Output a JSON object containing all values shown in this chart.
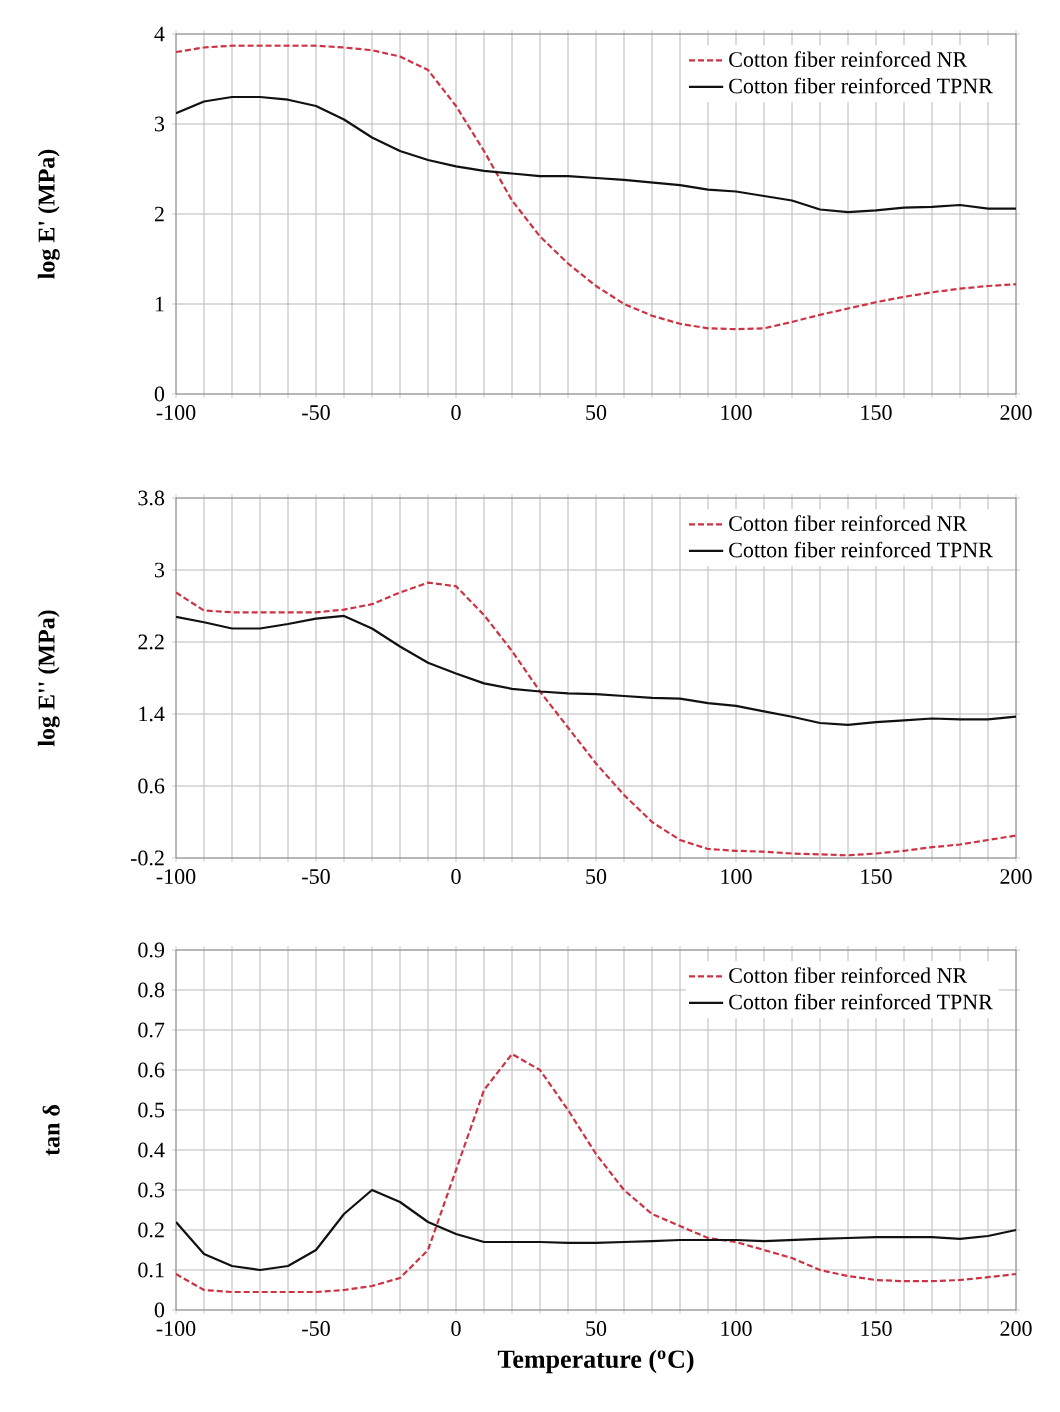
{
  "chart_data": [
    {
      "type": "line",
      "ylabel": "log E' (MPa)",
      "x": [
        -100,
        -90,
        -80,
        -70,
        -60,
        -50,
        -40,
        -30,
        -20,
        -10,
        0,
        10,
        20,
        30,
        40,
        50,
        60,
        70,
        80,
        90,
        100,
        110,
        120,
        130,
        140,
        150,
        160,
        170,
        180,
        190,
        200
      ],
      "series": [
        {
          "name": "Cotton fiber reinforced NR",
          "color": "#cc3344",
          "line_style": "dashed",
          "values": [
            3.8,
            3.85,
            3.87,
            3.87,
            3.87,
            3.87,
            3.85,
            3.82,
            3.75,
            3.6,
            3.2,
            2.7,
            2.15,
            1.75,
            1.45,
            1.2,
            1.0,
            0.87,
            0.78,
            0.73,
            0.72,
            0.73,
            0.8,
            0.88,
            0.95,
            1.02,
            1.08,
            1.13,
            1.17,
            1.2,
            1.22
          ]
        },
        {
          "name": "Cotton fiber reinforced TPNR",
          "color": "#111111",
          "line_style": "solid",
          "values": [
            3.12,
            3.25,
            3.3,
            3.3,
            3.27,
            3.2,
            3.05,
            2.85,
            2.7,
            2.6,
            2.53,
            2.48,
            2.45,
            2.42,
            2.42,
            2.4,
            2.38,
            2.35,
            2.32,
            2.27,
            2.25,
            2.2,
            2.15,
            2.05,
            2.02,
            2.04,
            2.07,
            2.08,
            2.1,
            2.06,
            2.06
          ]
        }
      ],
      "xlim": [
        -100,
        200
      ],
      "ylim": [
        0,
        4
      ],
      "xticks": [
        -100,
        {
          "value": -90,
          "label": null
        },
        {
          "value": -80,
          "label": null
        },
        {
          "value": -70,
          "label": null
        },
        {
          "value": -60,
          "label": null
        },
        -50,
        {
          "value": -40,
          "label": null
        },
        {
          "value": -30,
          "label": null
        },
        {
          "value": -20,
          "label": null
        },
        {
          "value": -10,
          "label": null
        },
        0,
        {
          "value": 10,
          "label": null
        },
        {
          "value": 20,
          "label": null
        },
        {
          "value": 30,
          "label": null
        },
        {
          "value": 40,
          "label": null
        },
        50,
        {
          "value": 60,
          "label": null
        },
        {
          "value": 70,
          "label": null
        },
        {
          "value": 80,
          "label": null
        },
        {
          "value": 90,
          "label": null
        },
        100,
        {
          "value": 110,
          "label": null
        },
        {
          "value": 120,
          "label": null
        },
        {
          "value": 130,
          "label": null
        },
        {
          "value": 140,
          "label": null
        },
        150,
        {
          "value": 160,
          "label": null
        },
        {
          "value": 170,
          "label": null
        },
        {
          "value": 180,
          "label": null
        },
        {
          "value": 190,
          "label": null
        },
        200
      ],
      "yticks": [
        0,
        1,
        2,
        3,
        4
      ],
      "grid": true,
      "legend": "top right"
    },
    {
      "type": "line",
      "ylabel": "log E'' (MPa)",
      "x": [
        -100,
        -90,
        -80,
        -70,
        -60,
        -50,
        -40,
        -30,
        -20,
        -10,
        0,
        10,
        20,
        30,
        40,
        50,
        60,
        70,
        80,
        90,
        100,
        110,
        120,
        130,
        140,
        150,
        160,
        170,
        180,
        190,
        200
      ],
      "series": [
        {
          "name": "Cotton fiber reinforced NR",
          "color": "#cc3344",
          "line_style": "dashed",
          "values": [
            2.75,
            2.55,
            2.53,
            2.53,
            2.53,
            2.53,
            2.56,
            2.62,
            2.75,
            2.86,
            2.82,
            2.5,
            2.1,
            1.65,
            1.25,
            0.85,
            0.5,
            0.2,
            0.0,
            -0.1,
            -0.12,
            -0.13,
            -0.15,
            -0.16,
            -0.17,
            -0.15,
            -0.12,
            -0.08,
            -0.05,
            0.0,
            0.05
          ]
        },
        {
          "name": "Cotton fiber reinforced TPNR",
          "color": "#111111",
          "line_style": "solid",
          "values": [
            2.48,
            2.42,
            2.35,
            2.35,
            2.4,
            2.46,
            2.49,
            2.35,
            2.15,
            1.97,
            1.85,
            1.74,
            1.68,
            1.65,
            1.63,
            1.62,
            1.6,
            1.58,
            1.57,
            1.52,
            1.49,
            1.43,
            1.37,
            1.3,
            1.28,
            1.31,
            1.33,
            1.35,
            1.34,
            1.34,
            1.37
          ]
        }
      ],
      "xlim": [
        -100,
        200
      ],
      "ylim": [
        -0.2,
        3.8
      ],
      "xticks": [
        -100,
        {
          "value": -90,
          "label": null
        },
        {
          "value": -80,
          "label": null
        },
        {
          "value": -70,
          "label": null
        },
        {
          "value": -60,
          "label": null
        },
        -50,
        {
          "value": -40,
          "label": null
        },
        {
          "value": -30,
          "label": null
        },
        {
          "value": -20,
          "label": null
        },
        {
          "value": -10,
          "label": null
        },
        0,
        {
          "value": 10,
          "label": null
        },
        {
          "value": 20,
          "label": null
        },
        {
          "value": 30,
          "label": null
        },
        {
          "value": 40,
          "label": null
        },
        50,
        {
          "value": 60,
          "label": null
        },
        {
          "value": 70,
          "label": null
        },
        {
          "value": 80,
          "label": null
        },
        {
          "value": 90,
          "label": null
        },
        100,
        {
          "value": 110,
          "label": null
        },
        {
          "value": 120,
          "label": null
        },
        {
          "value": 130,
          "label": null
        },
        {
          "value": 140,
          "label": null
        },
        150,
        {
          "value": 160,
          "label": null
        },
        {
          "value": 170,
          "label": null
        },
        {
          "value": 180,
          "label": null
        },
        {
          "value": 190,
          "label": null
        },
        200
      ],
      "yticks": [
        -0.2,
        0.6,
        1.4,
        2.2,
        3,
        3.8
      ],
      "grid": true,
      "legend": "top right"
    },
    {
      "type": "line",
      "ylabel": "tan δ",
      "xlabel": "Temperature ($^{o}$C)",
      "x": [
        -100,
        -90,
        -80,
        -70,
        -60,
        -50,
        -40,
        -30,
        -20,
        -10,
        0,
        10,
        20,
        30,
        40,
        50,
        60,
        70,
        80,
        90,
        100,
        110,
        120,
        130,
        140,
        150,
        160,
        170,
        180,
        190,
        200
      ],
      "series": [
        {
          "name": "Cotton fiber reinforced NR",
          "color": "#cc3344",
          "line_style": "dashed",
          "values": [
            0.09,
            0.05,
            0.045,
            0.045,
            0.045,
            0.045,
            0.05,
            0.06,
            0.08,
            0.15,
            0.35,
            0.55,
            0.64,
            0.6,
            0.5,
            0.39,
            0.3,
            0.24,
            0.21,
            0.18,
            0.17,
            0.15,
            0.13,
            0.1,
            0.085,
            0.075,
            0.072,
            0.072,
            0.075,
            0.082,
            0.09
          ]
        },
        {
          "name": "Cotton fiber reinforced TPNR",
          "color": "#111111",
          "line_style": "solid",
          "values": [
            0.22,
            0.14,
            0.11,
            0.1,
            0.11,
            0.15,
            0.24,
            0.3,
            0.27,
            0.22,
            0.19,
            0.17,
            0.17,
            0.17,
            0.168,
            0.168,
            0.17,
            0.172,
            0.175,
            0.175,
            0.175,
            0.172,
            0.175,
            0.178,
            0.18,
            0.182,
            0.182,
            0.182,
            0.178,
            0.185,
            0.2
          ]
        }
      ],
      "xlim": [
        -100,
        200
      ],
      "ylim": [
        0,
        0.9
      ],
      "xticks": [
        -100,
        {
          "value": -90,
          "label": null
        },
        {
          "value": -80,
          "label": null
        },
        {
          "value": -70,
          "label": null
        },
        {
          "value": -60,
          "label": null
        },
        -50,
        {
          "value": -40,
          "label": null
        },
        {
          "value": -30,
          "label": null
        },
        {
          "value": -20,
          "label": null
        },
        {
          "value": -10,
          "label": null
        },
        0,
        {
          "value": 10,
          "label": null
        },
        {
          "value": 20,
          "label": null
        },
        {
          "value": 30,
          "label": null
        },
        {
          "value": 40,
          "label": null
        },
        50,
        {
          "value": 60,
          "label": null
        },
        {
          "value": 70,
          "label": null
        },
        {
          "value": 80,
          "label": null
        },
        {
          "value": 90,
          "label": null
        },
        100,
        {
          "value": 110,
          "label": null
        },
        {
          "value": 120,
          "label": null
        },
        {
          "value": 130,
          "label": null
        },
        {
          "value": 140,
          "label": null
        },
        150,
        {
          "value": 160,
          "label": null
        },
        {
          "value": 170,
          "label": null
        },
        {
          "value": 180,
          "label": null
        },
        {
          "value": 190,
          "label": null
        },
        200
      ],
      "yticks": [
        0,
        0.1,
        0.2,
        0.3,
        0.4,
        0.5,
        0.6,
        0.7,
        0.8,
        0.9
      ],
      "grid": true,
      "legend": "top right"
    }
  ]
}
